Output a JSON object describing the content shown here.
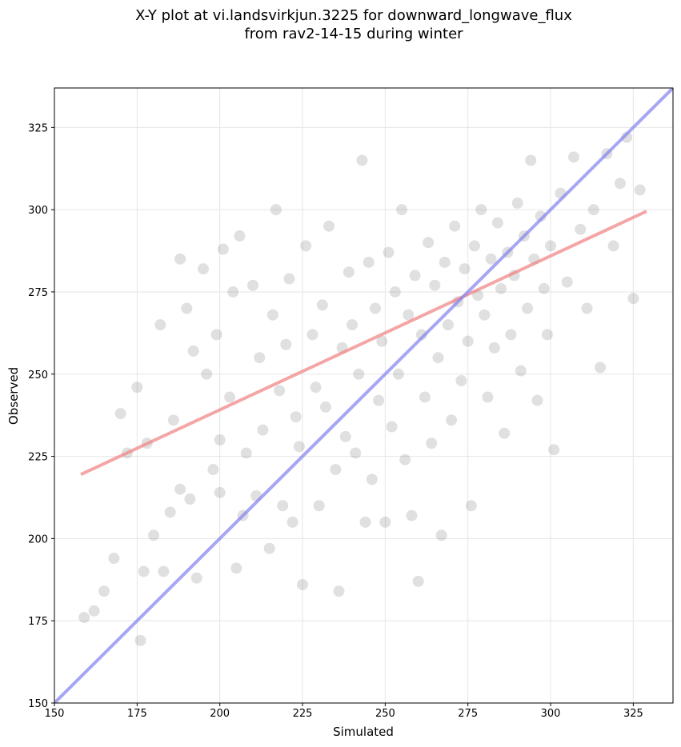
{
  "chart_data": {
    "type": "scatter",
    "title": [
      "X-Y plot at vi.landsvirkjun.3225 for downward_longwave_flux",
      "from rav2-14-15 during winter"
    ],
    "x_label": "Simulated",
    "y_label": "Observed",
    "xlim": [
      150,
      337
    ],
    "ylim": [
      150,
      337
    ],
    "xticks": [
      150,
      175,
      200,
      225,
      250,
      275,
      300,
      325
    ],
    "yticks": [
      150,
      175,
      200,
      225,
      250,
      275,
      300,
      325
    ],
    "grid": true,
    "color": "#555555",
    "x": [
      159,
      162,
      165,
      168,
      170,
      172,
      175,
      176,
      177,
      178,
      180,
      182,
      183,
      185,
      186,
      188,
      188,
      190,
      191,
      192,
      193,
      195,
      196,
      198,
      199,
      200,
      200,
      201,
      203,
      204,
      205,
      206,
      207,
      208,
      210,
      211,
      212,
      213,
      215,
      216,
      217,
      218,
      219,
      220,
      221,
      222,
      223,
      224,
      225,
      226,
      228,
      229,
      230,
      231,
      232,
      233,
      235,
      236,
      237,
      238,
      239,
      240,
      241,
      242,
      243,
      244,
      245,
      246,
      247,
      248,
      249,
      250,
      251,
      252,
      253,
      254,
      255,
      256,
      257,
      258,
      259,
      260,
      261,
      262,
      263,
      264,
      265,
      266,
      267,
      268,
      269,
      270,
      271,
      272,
      273,
      274,
      275,
      276,
      277,
      278,
      279,
      280,
      281,
      282,
      283,
      284,
      285,
      286,
      287,
      288,
      289,
      290,
      291,
      292,
      293,
      294,
      295,
      296,
      297,
      298,
      299,
      300,
      301,
      303,
      305,
      307,
      309,
      311,
      313,
      315,
      317,
      319,
      321,
      323,
      325,
      327
    ],
    "y": [
      176,
      178,
      184,
      194,
      238,
      226,
      246,
      169,
      190,
      229,
      201,
      265,
      190,
      208,
      236,
      285,
      215,
      270,
      212,
      257,
      188,
      282,
      250,
      221,
      262,
      214,
      230,
      288,
      243,
      275,
      191,
      292,
      207,
      226,
      277,
      213,
      255,
      233,
      197,
      268,
      300,
      245,
      210,
      259,
      279,
      205,
      237,
      228,
      186,
      289,
      262,
      246,
      210,
      271,
      240,
      295,
      221,
      184,
      258,
      231,
      281,
      265,
      226,
      250,
      315,
      205,
      284,
      218,
      270,
      242,
      260,
      205,
      287,
      234,
      275,
      250,
      300,
      224,
      268,
      207,
      280,
      187,
      262,
      243,
      290,
      229,
      277,
      255,
      201,
      284,
      265,
      236,
      295,
      272,
      248,
      282,
      260,
      210,
      289,
      274,
      300,
      268,
      243,
      285,
      258,
      296,
      276,
      232,
      287,
      262,
      280,
      302,
      251,
      292,
      270,
      315,
      285,
      242,
      298,
      276,
      262,
      289,
      227,
      305,
      278,
      316,
      294,
      270,
      300,
      252,
      317,
      289,
      308,
      322,
      273,
      306
    ],
    "fit_line": {
      "color": "#f08080",
      "x": [
        158,
        329
      ],
      "y": [
        219.5,
        299.5
      ]
    },
    "identity_line": {
      "color": "#8080f0",
      "x": [
        150,
        337
      ],
      "y": [
        150,
        337
      ]
    }
  }
}
